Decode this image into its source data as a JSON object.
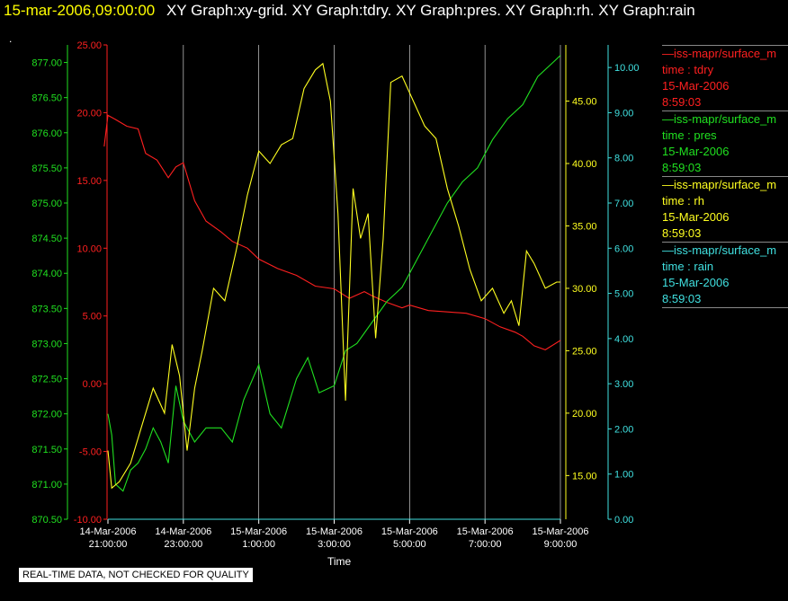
{
  "header": {
    "time": "15-mar-2006,09:00:00",
    "title": "XY Graph:xy-grid.  XY Graph:tdry.  XY Graph:pres.  XY Graph:rh.  XY Graph:rain"
  },
  "dot": ".",
  "legend": [
    {
      "name": "—iss-mapr/surface_m",
      "param": "time : tdry",
      "date": "15-Mar-2006",
      "time": "8:59:03",
      "color": "#ff2020"
    },
    {
      "name": "—iss-mapr/surface_m",
      "param": "time : pres",
      "date": "15-Mar-2006",
      "time": "8:59:03",
      "color": "#20e020"
    },
    {
      "name": "—iss-mapr/surface_m",
      "param": "time : rh",
      "date": "15-Mar-2006",
      "time": "8:59:03",
      "color": "#ffff20"
    },
    {
      "name": "—iss-mapr/surface_m",
      "param": "time : rain",
      "date": "15-Mar-2006",
      "time": "8:59:03",
      "color": "#40e0e0"
    }
  ],
  "quality_note": "REAL-TIME DATA, NOT CHECKED FOR QUALITY",
  "chart_data": {
    "type": "line",
    "xlabel": "Time",
    "x_ticks": [
      {
        "line1": "14-Mar-2006",
        "line2": "21:00:00",
        "h": 21.0
      },
      {
        "line1": "14-Mar-2006",
        "line2": "23:00:00",
        "h": 23.0
      },
      {
        "line1": "15-Mar-2006",
        "line2": "1:00:00",
        "h": 25.0
      },
      {
        "line1": "15-Mar-2006",
        "line2": "3:00:00",
        "h": 27.0
      },
      {
        "line1": "15-Mar-2006",
        "line2": "5:00:00",
        "h": 29.0
      },
      {
        "line1": "15-Mar-2006",
        "line2": "7:00:00",
        "h": 31.0
      },
      {
        "line1": "15-Mar-2006",
        "line2": "9:00:00",
        "h": 33.0
      }
    ],
    "xlim_hours": [
      21.0,
      33.0
    ],
    "axes": {
      "pres": {
        "color": "#20e020",
        "ylim": [
          870.5,
          877.25
        ],
        "ticks": [
          "870.50",
          "871.00",
          "871.50",
          "872.00",
          "872.50",
          "873.00",
          "873.50",
          "874.00",
          "874.50",
          "875.00",
          "875.50",
          "876.00",
          "876.50",
          "877.00"
        ]
      },
      "tdry": {
        "color": "#ff2020",
        "ylim": [
          -10.0,
          25.0
        ],
        "ticks": [
          "-10.00",
          "-5.00",
          "0.00",
          "5.00",
          "10.00",
          "15.00",
          "20.00",
          "25.00"
        ]
      },
      "rh": {
        "color": "#ffff20",
        "ylim": [
          11.5,
          49.5
        ],
        "ticks": [
          "15.00",
          "20.00",
          "25.00",
          "30.00",
          "35.00",
          "40.00",
          "45.00"
        ]
      },
      "rain": {
        "color": "#40e0e0",
        "ylim": [
          0.0,
          10.5
        ],
        "ticks": [
          "0.00",
          "1.00",
          "2.00",
          "3.00",
          "4.00",
          "5.00",
          "6.00",
          "7.00",
          "8.00",
          "9.00",
          "10.00"
        ]
      }
    },
    "series": [
      {
        "key": "tdry",
        "color": "#ff2020",
        "x": [
          20.9,
          21.0,
          21.2,
          21.5,
          21.8,
          22.0,
          22.3,
          22.6,
          22.8,
          23.0,
          23.3,
          23.6,
          24.0,
          24.3,
          24.7,
          25.0,
          25.5,
          26.0,
          26.5,
          27.0,
          27.4,
          27.8,
          28.0,
          28.4,
          28.8,
          29.0,
          29.5,
          30.0,
          30.5,
          31.0,
          31.4,
          31.8,
          32.0,
          32.3,
          32.6,
          33.0
        ],
        "y": [
          17.5,
          19.8,
          19.5,
          19.0,
          18.8,
          17.0,
          16.5,
          15.2,
          16.0,
          16.3,
          13.5,
          12.0,
          11.2,
          10.5,
          10.0,
          9.2,
          8.5,
          8.0,
          7.2,
          7.0,
          6.3,
          6.8,
          6.5,
          6.0,
          5.6,
          5.8,
          5.4,
          5.3,
          5.2,
          4.8,
          4.2,
          3.8,
          3.5,
          2.8,
          2.5,
          3.2
        ]
      },
      {
        "key": "pres",
        "color": "#20e020",
        "x": [
          21.0,
          21.1,
          21.2,
          21.4,
          21.6,
          21.8,
          22.0,
          22.2,
          22.4,
          22.6,
          22.8,
          23.0,
          23.3,
          23.6,
          24.0,
          24.3,
          24.6,
          25.0,
          25.3,
          25.6,
          26.0,
          26.3,
          26.6,
          27.0,
          27.3,
          27.6,
          28.0,
          28.4,
          28.8,
          29.2,
          29.6,
          30.0,
          30.4,
          30.8,
          31.2,
          31.6,
          32.0,
          32.4,
          32.8,
          33.0
        ],
        "y": [
          872.0,
          871.7,
          871.0,
          870.9,
          871.2,
          871.3,
          871.5,
          871.8,
          871.6,
          871.3,
          872.4,
          871.9,
          871.6,
          871.8,
          871.8,
          871.6,
          872.2,
          872.7,
          872.0,
          871.8,
          872.5,
          872.8,
          872.3,
          872.4,
          872.9,
          873.0,
          873.3,
          873.6,
          873.8,
          874.2,
          874.6,
          875.0,
          875.3,
          875.5,
          875.9,
          876.2,
          876.4,
          876.8,
          877.0,
          877.1
        ]
      },
      {
        "key": "rh",
        "color": "#ffff20",
        "x": [
          21.0,
          21.1,
          21.3,
          21.6,
          21.9,
          22.2,
          22.5,
          22.7,
          22.9,
          23.1,
          23.3,
          23.5,
          23.8,
          24.1,
          24.4,
          24.7,
          25.0,
          25.3,
          25.6,
          25.9,
          26.2,
          26.5,
          26.7,
          26.9,
          27.1,
          27.3,
          27.5,
          27.7,
          27.9,
          28.1,
          28.3,
          28.5,
          28.8,
          29.1,
          29.4,
          29.7,
          30.0,
          30.3,
          30.6,
          30.9,
          31.2,
          31.5,
          31.7,
          31.9,
          32.1,
          32.3,
          32.6,
          32.9,
          33.0
        ],
        "y": [
          17.0,
          14.0,
          14.5,
          16.0,
          19.0,
          22.0,
          20.0,
          25.5,
          23.0,
          17.0,
          22.0,
          25.0,
          30.0,
          29.0,
          33.0,
          37.5,
          41.0,
          40.0,
          41.5,
          42.0,
          46.0,
          47.5,
          48.0,
          45.0,
          36.0,
          21.0,
          38.0,
          34.0,
          36.0,
          26.0,
          34.0,
          46.5,
          47.0,
          45.0,
          43.0,
          42.0,
          38.0,
          35.0,
          31.5,
          29.0,
          30.0,
          28.0,
          29.0,
          27.0,
          33.0,
          32.0,
          30.0,
          30.5,
          30.5
        ]
      },
      {
        "key": "rain",
        "color": "#40e0e0",
        "x": [
          21.0,
          33.0
        ],
        "y": [
          0.0,
          0.0
        ]
      }
    ]
  }
}
